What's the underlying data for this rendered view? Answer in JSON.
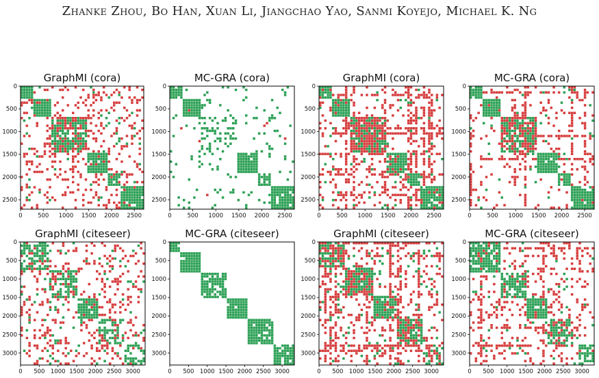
{
  "header": {
    "authors": "Zhanke Zhou, Bo Han, Xuan Li, Jiangchao Yao, Sanmi Koyejo, Michael K. Ng"
  },
  "colors": {
    "red": "#d63c3c",
    "green": "#2ca055"
  },
  "chart_data": [
    {
      "type": "heatmap",
      "title": "GraphMI (cora)",
      "dataset": "cora",
      "xlim": [
        0,
        2708
      ],
      "ylim": [
        2708,
        0
      ],
      "xticks": [
        0,
        500,
        1000,
        1500,
        2000,
        2500
      ],
      "yticks": [
        0,
        500,
        1000,
        1500,
        2000,
        2500
      ],
      "blocks": [
        [
          0,
          300
        ],
        [
          300,
          700
        ],
        [
          700,
          1450
        ],
        [
          1450,
          1900
        ],
        [
          1900,
          2200
        ],
        [
          2200,
          2708
        ]
      ],
      "red_density": 0.16,
      "green_density": 0.03,
      "red_block_density": [
        0.05,
        0.1,
        0.35,
        0.05,
        0.05,
        0.05
      ],
      "green_block_density": [
        0.9,
        0.9,
        0.45,
        0.85,
        0.85,
        0.85
      ],
      "band_density": 0.0
    },
    {
      "type": "heatmap",
      "title": "MC-GRA (cora)",
      "dataset": "cora",
      "xlim": [
        0,
        2708
      ],
      "ylim": [
        2708,
        0
      ],
      "xticks": [
        0,
        500,
        1000,
        1500,
        2000,
        2500
      ],
      "yticks": [
        0,
        500,
        1000,
        1500,
        2000,
        2500
      ],
      "blocks": [
        [
          0,
          300
        ],
        [
          300,
          700
        ],
        [
          700,
          1450
        ],
        [
          1450,
          1900
        ],
        [
          1900,
          2200
        ],
        [
          2200,
          2708
        ]
      ],
      "red_density": 0.004,
      "green_density": 0.05,
      "red_block_density": [
        0.0,
        0.02,
        0.0,
        0.0,
        0.0,
        0.0
      ],
      "green_block_density": [
        0.95,
        0.95,
        0.35,
        0.95,
        0.9,
        0.9
      ],
      "band_density": 0.0
    },
    {
      "type": "heatmap",
      "title": "GraphMI (cora)",
      "dataset": "cora",
      "xlim": [
        0,
        2708
      ],
      "ylim": [
        2708,
        0
      ],
      "xticks": [
        0,
        500,
        1000,
        1500,
        2000,
        2500
      ],
      "yticks": [
        0,
        500,
        1000,
        1500,
        2000,
        2500
      ],
      "blocks": [
        [
          0,
          300
        ],
        [
          300,
          700
        ],
        [
          700,
          1450
        ],
        [
          1450,
          1900
        ],
        [
          1900,
          2200
        ],
        [
          2200,
          2708
        ]
      ],
      "red_density": 0.1,
      "green_density": 0.02,
      "red_block_density": [
        0.1,
        0.1,
        0.6,
        0.1,
        0.1,
        0.1
      ],
      "green_block_density": [
        0.85,
        0.9,
        0.35,
        0.85,
        0.85,
        0.8
      ],
      "band_density": 0.45
    },
    {
      "type": "heatmap",
      "title": "MC-GRA (cora)",
      "dataset": "cora",
      "xlim": [
        0,
        2708
      ],
      "ylim": [
        2708,
        0
      ],
      "xticks": [
        0,
        500,
        1000,
        1500,
        2000,
        2500
      ],
      "yticks": [
        0,
        500,
        1000,
        1500,
        2000,
        2500
      ],
      "blocks": [
        [
          0,
          300
        ],
        [
          300,
          700
        ],
        [
          700,
          1450
        ],
        [
          1450,
          1900
        ],
        [
          1900,
          2200
        ],
        [
          2200,
          2708
        ]
      ],
      "red_density": 0.08,
      "green_density": 0.02,
      "red_block_density": [
        0.05,
        0.1,
        0.45,
        0.05,
        0.05,
        0.05
      ],
      "green_block_density": [
        0.9,
        0.9,
        0.4,
        0.9,
        0.85,
        0.85
      ],
      "band_density": 0.2
    },
    {
      "type": "heatmap",
      "title": "GraphMI (citeseer)",
      "dataset": "citeseer",
      "xlim": [
        0,
        3327
      ],
      "ylim": [
        3327,
        0
      ],
      "xticks": [
        0,
        500,
        1000,
        1500,
        2000,
        2500,
        3000
      ],
      "yticks": [
        0,
        500,
        1000,
        1500,
        2000,
        2500,
        3000
      ],
      "blocks": [
        [
          0,
          750
        ],
        [
          750,
          1500
        ],
        [
          1500,
          2050
        ],
        [
          2050,
          2800
        ],
        [
          2800,
          3327
        ]
      ],
      "red_density": 0.16,
      "green_density": 0.04,
      "red_block_density": [
        0.15,
        0.15,
        0.1,
        0.15,
        0.1
      ],
      "green_block_density": [
        0.55,
        0.5,
        0.85,
        0.5,
        0.45
      ],
      "band_density": 0.0
    },
    {
      "type": "heatmap",
      "title": "MC-GRA (citeseer)",
      "dataset": "citeseer",
      "xlim": [
        0,
        3327
      ],
      "ylim": [
        3327,
        0
      ],
      "xticks": [
        0,
        500,
        1000,
        1500,
        2000,
        2500,
        3000
      ],
      "yticks": [
        0,
        500,
        1000,
        1500,
        2000,
        2500,
        3000
      ],
      "blocks": [
        [
          0,
          250
        ],
        [
          250,
          850
        ],
        [
          850,
          1550
        ],
        [
          1550,
          2100
        ],
        [
          2100,
          2800
        ],
        [
          2800,
          3327
        ]
      ],
      "red_density": 0.0,
      "green_density": 0.0,
      "red_block_density": [
        0.0,
        0.0,
        0.0,
        0.0,
        0.0,
        0.0
      ],
      "green_block_density": [
        0.95,
        0.95,
        0.75,
        0.95,
        0.9,
        0.85
      ],
      "band_density": 0.0
    },
    {
      "type": "heatmap",
      "title": "GraphMI (citeseer)",
      "dataset": "citeseer",
      "xlim": [
        0,
        3327
      ],
      "ylim": [
        3327,
        0
      ],
      "xticks": [
        0,
        500,
        1000,
        1500,
        2000,
        2500,
        3000
      ],
      "yticks": [
        0,
        500,
        1000,
        1500,
        2000,
        2500,
        3000
      ],
      "blocks": [
        [
          0,
          700
        ],
        [
          700,
          1450
        ],
        [
          1450,
          2050
        ],
        [
          2050,
          2800
        ],
        [
          2800,
          3327
        ]
      ],
      "red_density": 0.14,
      "green_density": 0.05,
      "red_block_density": [
        0.45,
        0.35,
        0.2,
        0.45,
        0.3
      ],
      "green_block_density": [
        0.45,
        0.55,
        0.75,
        0.45,
        0.35
      ],
      "band_density": 0.4
    },
    {
      "type": "heatmap",
      "title": "MC-GRA (citeseer)",
      "dataset": "citeseer",
      "xlim": [
        0,
        3327
      ],
      "ylim": [
        3327,
        0
      ],
      "xticks": [
        0,
        500,
        1000,
        1500,
        2000,
        2500,
        3000
      ],
      "yticks": [
        0,
        500,
        1000,
        1500,
        2000,
        2500,
        3000
      ],
      "blocks": [
        [
          0,
          800
        ],
        [
          800,
          1500
        ],
        [
          1500,
          2100
        ],
        [
          2100,
          2800
        ],
        [
          2800,
          3327
        ]
      ],
      "red_density": 0.14,
      "green_density": 0.03,
      "red_block_density": [
        0.1,
        0.1,
        0.05,
        0.15,
        0.1
      ],
      "green_block_density": [
        0.7,
        0.65,
        0.85,
        0.6,
        0.5
      ],
      "band_density": 0.1
    }
  ]
}
